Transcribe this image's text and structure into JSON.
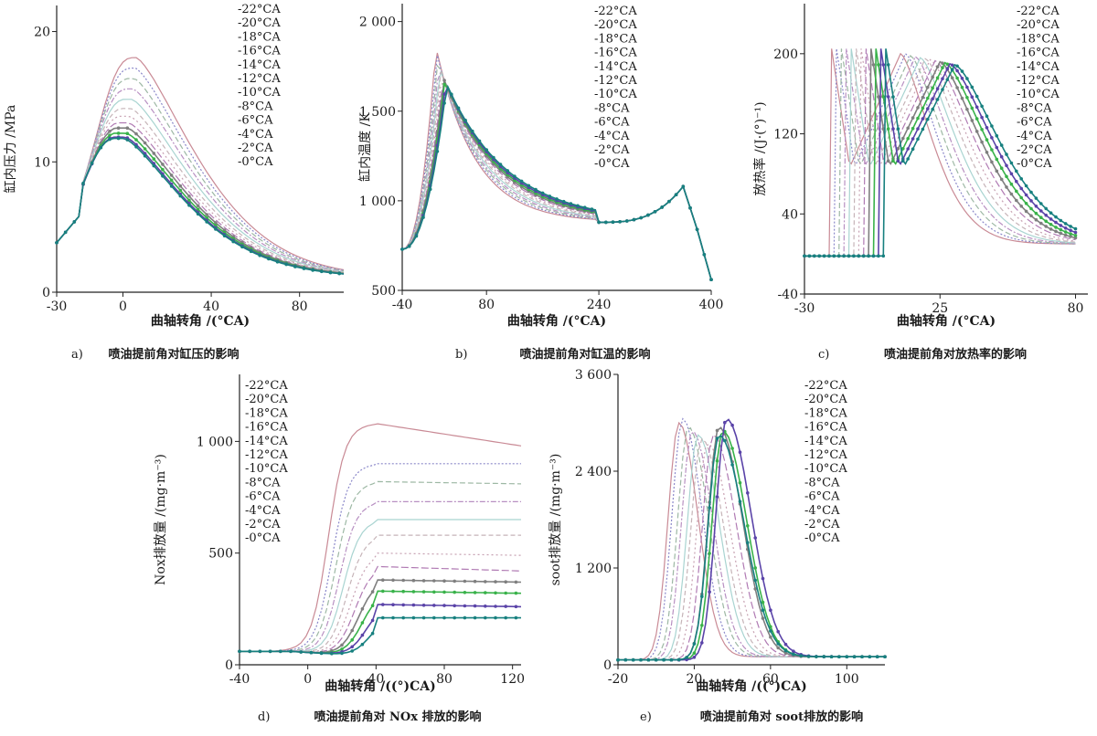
{
  "legend_labels": [
    "-22°CA",
    "-20°CA",
    "-18°CA",
    "-16°CA",
    "-14°CA",
    "-12°CA",
    "-10°CA",
    "-8°CA",
    "-6°CA",
    "-4°CA",
    "-2°CA",
    "-0°CA"
  ],
  "series_colors": [
    "#c98a95",
    "#8a87c9",
    "#9db8a4",
    "#b890c2",
    "#a9d4d1",
    "#c6b4b8",
    "#c7a1b2",
    "#b07ab3",
    "#7f7f7f",
    "#39b24a",
    "#5a43a8",
    "#17807f"
  ],
  "chart_data": [
    {
      "id": "a",
      "type": "line",
      "caption_tag": "a)",
      "caption": "喷油提前角对缸压的影响",
      "ylabel": "缸内压力 /MPa",
      "xlabel": "曲轴转角 /(°CA)",
      "xlim": [
        -30,
        100
      ],
      "ylim": [
        0,
        22
      ],
      "xticks": [
        -30,
        0,
        40,
        80
      ],
      "xtick_labels": [
        "-30",
        "0",
        "40",
        "80"
      ],
      "yticks": [
        0,
        10,
        20
      ],
      "ytick_labels": [
        "0",
        "10",
        "20"
      ],
      "peak_values": [
        18.0,
        17.2,
        16.4,
        15.6,
        14.8,
        14.1,
        13.5,
        13.0,
        12.6,
        12.2,
        11.9,
        11.8
      ],
      "peak_angles": [
        6,
        5.5,
        5,
        4.5,
        4,
        3.5,
        3,
        2.5,
        2,
        1.5,
        1,
        0.5
      ]
    },
    {
      "id": "b",
      "type": "line",
      "caption_tag": "b)",
      "caption": "喷油提前角对缸温的影响",
      "ylabel": "缸内温度 /K",
      "xlabel": "曲轴转角 /(°CA)",
      "xlim": [
        -40,
        400
      ],
      "ylim": [
        500,
        2100
      ],
      "xticks": [
        -40,
        80,
        240,
        400
      ],
      "xtick_labels": [
        "-40",
        "80",
        "240",
        "400"
      ],
      "yticks": [
        500,
        1000,
        1500,
        2000
      ],
      "ytick_labels": [
        "500",
        "1 000",
        "1 500",
        "2 000"
      ],
      "peak_values": [
        1860,
        1820,
        1790,
        1760,
        1740,
        1720,
        1700,
        1690,
        1680,
        1670,
        1660,
        1650
      ],
      "secondary_peak": 1080
    },
    {
      "id": "c",
      "type": "line",
      "caption_tag": "c)",
      "caption": "喷油提前角对放热率的影响",
      "ylabel": "放热率 /(J·(°)⁻¹)",
      "xlabel": "曲轴转角 /(°CA)",
      "xlim": [
        -30,
        85
      ],
      "ylim": [
        -40,
        250
      ],
      "xticks": [
        -30,
        25,
        80
      ],
      "xtick_labels": [
        "-30",
        "25",
        "80"
      ],
      "yticks": [
        -40,
        40,
        120,
        200
      ],
      "ytick_labels": [
        "-40",
        "40",
        "120",
        "200"
      ],
      "start_angles": [
        -19,
        -17,
        -15,
        -13,
        -11,
        -9,
        -7,
        -5,
        -3,
        -1,
        1,
        3
      ],
      "peak_values": [
        200,
        200,
        198,
        197,
        196,
        195,
        194,
        193,
        192,
        191,
        190,
        189
      ]
    },
    {
      "id": "d",
      "type": "line",
      "caption_tag": "d)",
      "caption": "喷油提前角对 NOx 排放的影响",
      "ylabel": "Nox排放量 /(mg·m⁻³)",
      "xlabel": "曲轴转角 /((°)CA)",
      "xlim": [
        -40,
        125
      ],
      "ylim": [
        0,
        1300
      ],
      "xticks": [
        -40,
        0,
        40,
        80,
        120
      ],
      "xtick_labels": [
        "-40",
        "0",
        "40",
        "80",
        "120"
      ],
      "yticks": [
        0,
        500,
        1000
      ],
      "ytick_labels": [
        "0",
        "500",
        "1 000"
      ],
      "plateau_values": [
        1080,
        900,
        820,
        730,
        650,
        580,
        500,
        440,
        380,
        330,
        270,
        210
      ],
      "end_values": [
        980,
        900,
        810,
        730,
        650,
        580,
        490,
        420,
        370,
        320,
        260,
        210
      ]
    },
    {
      "id": "e",
      "type": "line",
      "caption_tag": "e)",
      "caption": "喷油提前角对 soot排放的影响",
      "ylabel": "soot排放量 /(mg·m⁻³)",
      "xlabel": "曲轴转角 /((°)CA)",
      "xlim": [
        -20,
        120
      ],
      "ylim": [
        0,
        3600
      ],
      "xticks": [
        -20,
        20,
        60,
        100
      ],
      "xtick_labels": [
        "-20",
        "20",
        "60",
        "100"
      ],
      "yticks": [
        0,
        1200,
        2400,
        3600
      ],
      "ytick_labels": [
        "0",
        "1 200",
        "2 400",
        "3 600"
      ],
      "peak_values": [
        3000,
        3050,
        2950,
        2900,
        2850,
        2800,
        2750,
        2850,
        2950,
        2900,
        3050,
        2850
      ],
      "peak_angles": [
        12,
        14,
        17,
        19,
        22,
        24,
        27,
        30,
        33,
        35,
        37,
        33
      ]
    }
  ]
}
